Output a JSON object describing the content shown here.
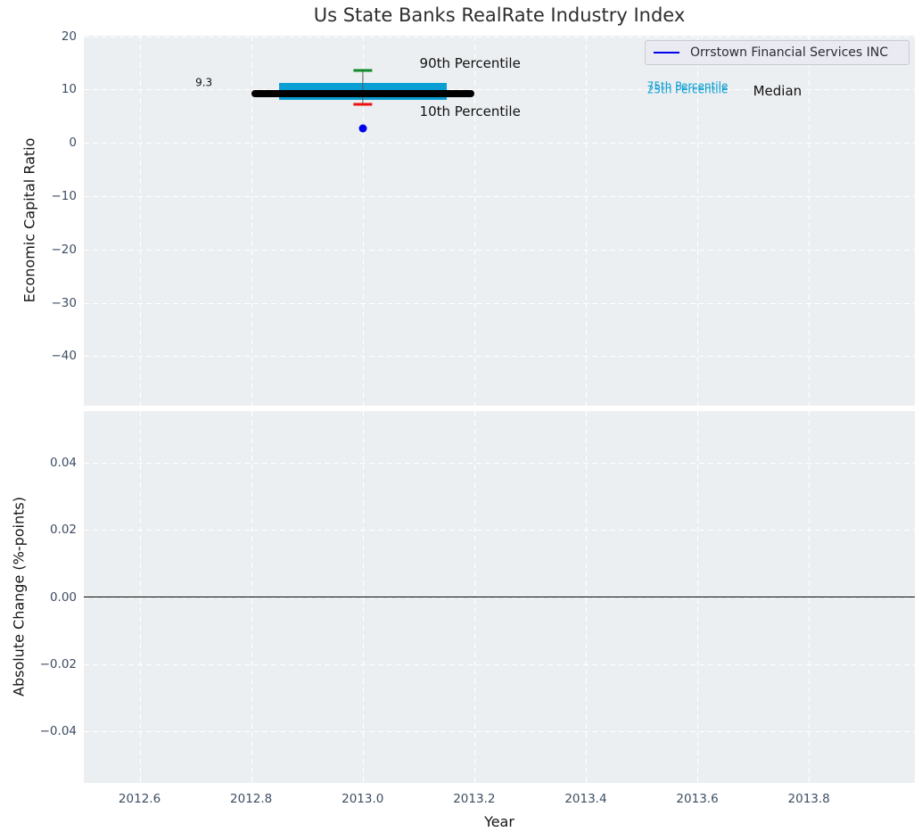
{
  "title": "Us State Banks RealRate Industry Index",
  "legend": {
    "label": "Orrstown Financial Services INC",
    "line_color": "#0000ee",
    "position": "upper right"
  },
  "colors": {
    "accent_cyan": "#0a9ed4",
    "green": "#0f8a28",
    "red": "#ee1010",
    "blue": "#0000ee",
    "black": "#111111",
    "plot_bg": "#eceff1",
    "grid": "#ffffff",
    "tick_text": "#3d4d63",
    "label_text": "#141414"
  },
  "chart_data": [
    {
      "type": "boxplot",
      "title": "Us State Banks RealRate Industry Index",
      "xlabel": "Year",
      "ylabel": "Economic Capital Ratio",
      "xlim": [
        2012.5,
        2013.99
      ],
      "ylim": [
        -49.3,
        20.1
      ],
      "grid": "dashed-white",
      "xticks": [
        2012.6,
        2012.8,
        2013.0,
        2013.2,
        2013.4,
        2013.6,
        2013.8
      ],
      "xtick_labels": [
        "2012.6",
        "2012.8",
        "2013.0",
        "2013.2",
        "2013.4",
        "2013.6",
        "2013.8"
      ],
      "yticks": [
        20,
        10,
        0,
        -10,
        -20,
        -30,
        -40
      ],
      "ytick_labels": [
        "20",
        "10",
        "0",
        "−10",
        "−20",
        "−30",
        "−40"
      ],
      "box": {
        "x": 2013.0,
        "median": 9.3,
        "median_label": "9.3",
        "median_span": [
          2012.8,
          2013.2
        ],
        "p75": 11.3,
        "p25": 8.0,
        "box_span": [
          2012.85,
          2013.15
        ],
        "p90": 13.5,
        "p10": 7.3,
        "cap_halfwidth": 0.017
      },
      "company_point": {
        "name": "Orrstown Financial Services INC",
        "x": 2013.0,
        "y": 2.7
      },
      "annotations": [
        {
          "text": "90th Percentile",
          "x": 2013.102,
          "y": 14.7,
          "color": "black",
          "size": 15
        },
        {
          "text": "10th Percentile",
          "x": 2013.102,
          "y": 5.8,
          "color": "black",
          "size": 15
        },
        {
          "text": "75th Percentile",
          "x": 2013.51,
          "y": 10.6,
          "color": "cyan",
          "size": 12
        },
        {
          "text": "25th Percentile",
          "x": 2013.51,
          "y": 9.9,
          "color": "cyan",
          "size": 12
        },
        {
          "text": "Median",
          "x": 2013.7,
          "y": 9.5,
          "color": "black",
          "size": 15
        },
        {
          "text": "9.3",
          "x": 2012.7,
          "y": 11.2,
          "color": "black",
          "size": 12
        }
      ]
    },
    {
      "type": "line",
      "xlabel": "Year",
      "ylabel": "Absolute Change (%-points)",
      "xlim": [
        2012.5,
        2013.99
      ],
      "ylim": [
        -0.0553,
        0.0553
      ],
      "grid": "dashed-white",
      "xticks": [
        2012.6,
        2012.8,
        2013.0,
        2013.2,
        2013.4,
        2013.6,
        2013.8
      ],
      "xtick_labels": [
        "2012.6",
        "2012.8",
        "2013.0",
        "2013.2",
        "2013.4",
        "2013.6",
        "2013.8"
      ],
      "yticks": [
        0.04,
        0.02,
        0,
        -0.02,
        -0.04
      ],
      "ytick_labels": [
        "0.04",
        "0.02",
        "0.00",
        "−0.02",
        "−0.04"
      ],
      "zero_line": true,
      "series": []
    }
  ]
}
